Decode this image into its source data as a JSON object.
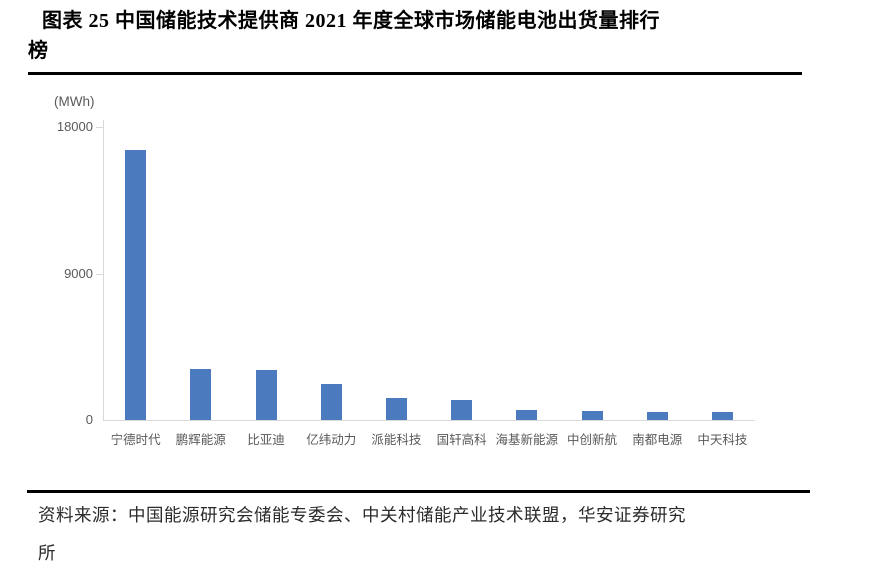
{
  "header": {
    "title_lines": [
      "图表 25 中国储能技术提供商 2021 年度全球市场储能电池出货量排行",
      "榜"
    ]
  },
  "footer": {
    "source_lines": [
      "资料来源：中国能源研究会储能专委会、中关村储能产业技术联盟，华安证券研究",
      "所"
    ]
  },
  "colors": {
    "bar": "#4b7bbe",
    "axis_line": "#d9d9d9",
    "tick_text": "#595959",
    "rule": "#000000"
  },
  "chart_data": {
    "type": "bar",
    "title": "中国储能技术提供商2021年度全球市场储能电池出货量排行榜",
    "unit_label": "(MWh)",
    "categories": [
      "宁德时代",
      "鹏辉能源",
      "比亚迪",
      "亿纬动力",
      "派能科技",
      "国轩高科",
      "海基新能源",
      "中创新航",
      "南都电源",
      "中天科技"
    ],
    "values": [
      16600,
      3150,
      3100,
      2200,
      1380,
      1240,
      620,
      560,
      520,
      510
    ],
    "yticks": [
      "18000",
      "9000",
      "0"
    ],
    "ylim": [
      0,
      18000
    ],
    "xlabel": "",
    "ylabel": "MWh",
    "grid": false,
    "legend": false,
    "bar_color": "#4b7bbe"
  }
}
